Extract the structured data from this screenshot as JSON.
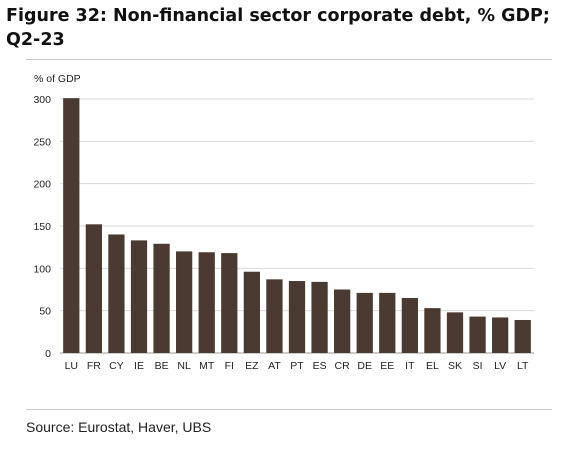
{
  "title": "Figure 32: Non-financial sector corporate debt, % GDP; Q2-23",
  "source": "Source: Eurostat, Haver, UBS",
  "colors": {
    "bar": "#4a3a31",
    "grid": "#d9d9d9",
    "axis": "#999999"
  },
  "chart_data": {
    "type": "bar",
    "title": "Figure 32: Non-financial sector corporate debt, % GDP; Q2-23",
    "ylabel": "% of GDP",
    "xlabel": "",
    "ylim": [
      0,
      300
    ],
    "yticks": [
      0,
      50,
      100,
      150,
      200,
      250,
      300
    ],
    "grid": true,
    "categories": [
      "LU",
      "FR",
      "CY",
      "IE",
      "BE",
      "NL",
      "MT",
      "FI",
      "EZ",
      "AT",
      "PT",
      "ES",
      "CR",
      "DE",
      "EE",
      "IT",
      "EL",
      "SK",
      "SI",
      "LV",
      "LT"
    ],
    "values": [
      301,
      152,
      140,
      133,
      129,
      120,
      119,
      118,
      96,
      87,
      85,
      84,
      75,
      71,
      71,
      65,
      53,
      48,
      43,
      42,
      39
    ]
  }
}
